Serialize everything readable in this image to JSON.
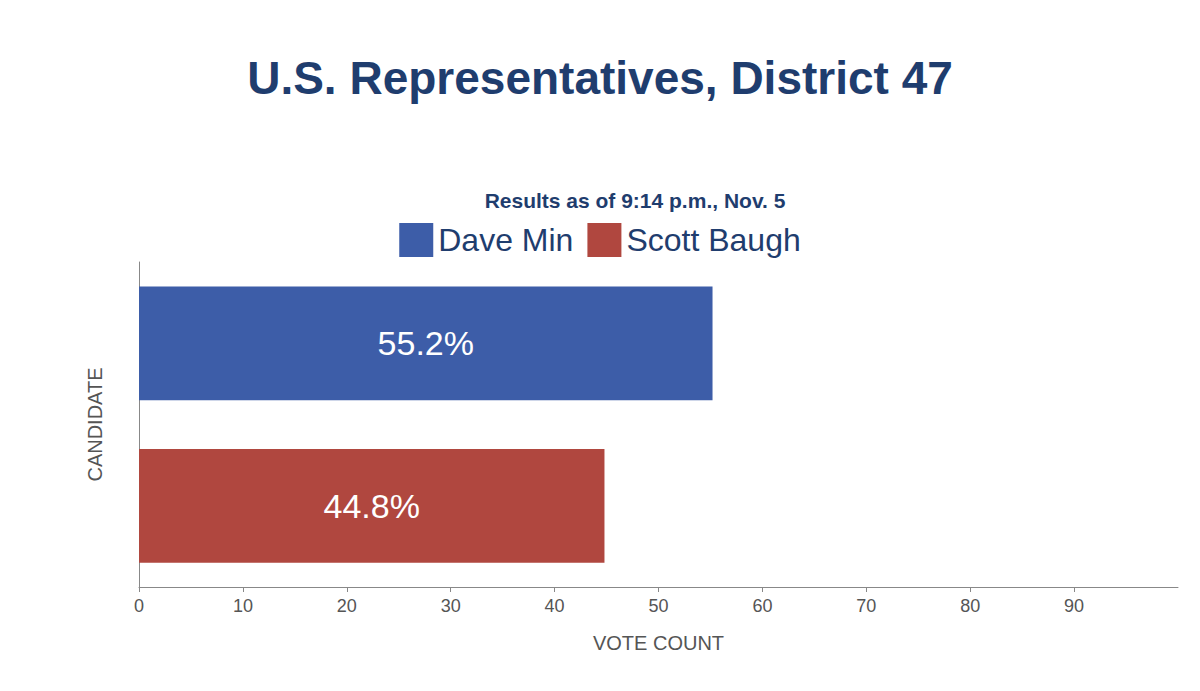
{
  "chart_data": {
    "type": "bar",
    "title": "U.S. Representatives, District 47",
    "subtitle": "Results as of 9:14 p.m., Nov. 5",
    "x_label": "VOTE COUNT",
    "y_label": "CANDIDATE",
    "orientation": "horizontal",
    "categories": [
      "Dave Min",
      "Scott Baugh"
    ],
    "series": [
      {
        "name": "Dave Min",
        "color": "#3d5da8",
        "values": [
          55.2,
          null
        ],
        "value_labels": [
          "55.2%",
          null
        ]
      },
      {
        "name": "Scott Baugh",
        "color": "#b0473f",
        "values": [
          null,
          44.8
        ],
        "value_labels": [
          null,
          "44.8%"
        ]
      }
    ],
    "xlim": [
      0,
      100
    ],
    "xticks": [
      0,
      10,
      20,
      30,
      40,
      50,
      60,
      70,
      80,
      90
    ],
    "grid": false,
    "legend": "top",
    "data_labels": true,
    "tick_labels": "x"
  }
}
